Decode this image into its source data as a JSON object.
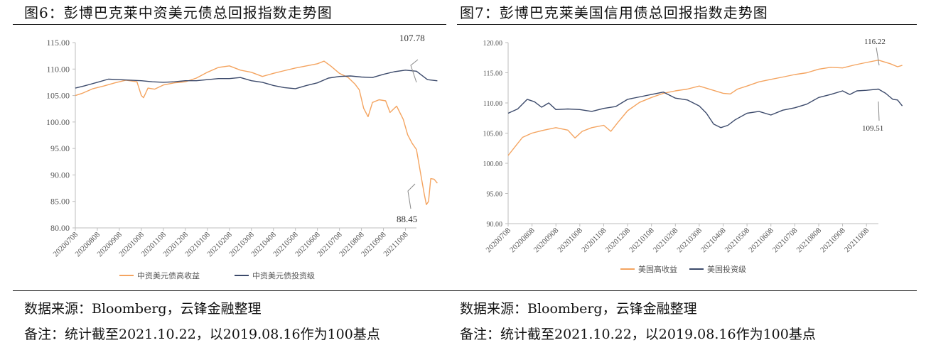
{
  "panels": [
    {
      "title": "图6：彭博巴克莱中资美元债总回报指数走势图",
      "source": "数据来源：Bloomberg，云锋金融整理",
      "note": "备注：统计截至2021.10.22，以2019.08.16作为100基点"
    },
    {
      "title": "图7：彭博巴克莱美国信用债总回报指数走势图",
      "source": "数据来源：Bloomberg，云锋金融整理",
      "note": "备注：统计截至2021.10.22，以2019.08.16作为100基点"
    }
  ],
  "colors": {
    "orange": "#F4A460",
    "navy": "#3C4A6B"
  },
  "chart_data": [
    {
      "type": "line",
      "ylim": [
        80,
        115
      ],
      "yticks": [
        "115.00",
        "110.00",
        "105.00",
        "100.00",
        "95.00",
        "90.00",
        "85.00",
        "80.00"
      ],
      "xticks": [
        "20200708",
        "20200808",
        "20200908",
        "20201008",
        "20201108",
        "20201208",
        "20210108",
        "20210208",
        "20210308",
        "20210408",
        "20210508",
        "20210608",
        "20210708",
        "20210808",
        "20210908",
        "20211008"
      ],
      "annotations": [
        {
          "text": "107.78"
        },
        {
          "text": "88.45"
        }
      ],
      "series": [
        {
          "name": "中资美元债高收益",
          "color": "#F4A460",
          "points": [
            [
              0,
              105.0
            ],
            [
              0.3,
              105.4
            ],
            [
              0.8,
              106.3
            ],
            [
              1.3,
              106.8
            ],
            [
              1.8,
              107.4
            ],
            [
              2.3,
              107.9
            ],
            [
              2.8,
              107.6
            ],
            [
              3.0,
              105.0
            ],
            [
              3.1,
              104.6
            ],
            [
              3.3,
              106.4
            ],
            [
              3.6,
              106.2
            ],
            [
              4.0,
              107.0
            ],
            [
              4.5,
              107.4
            ],
            [
              5.0,
              107.6
            ],
            [
              5.5,
              108.3
            ],
            [
              6.0,
              109.4
            ],
            [
              6.5,
              110.3
            ],
            [
              7.0,
              110.6
            ],
            [
              7.5,
              109.8
            ],
            [
              8.0,
              109.4
            ],
            [
              8.5,
              108.6
            ],
            [
              9.0,
              109.2
            ],
            [
              9.5,
              109.7
            ],
            [
              10.0,
              110.2
            ],
            [
              10.5,
              110.6
            ],
            [
              11.0,
              111.0
            ],
            [
              11.3,
              111.5
            ],
            [
              11.6,
              110.6
            ],
            [
              12.0,
              109.2
            ],
            [
              12.4,
              108.4
            ],
            [
              12.7,
              107.2
            ],
            [
              12.9,
              106.1
            ],
            [
              13.1,
              102.6
            ],
            [
              13.3,
              101.0
            ],
            [
              13.5,
              103.7
            ],
            [
              13.8,
              104.2
            ],
            [
              14.1,
              104.0
            ],
            [
              14.3,
              101.8
            ],
            [
              14.6,
              103.0
            ],
            [
              14.9,
              100.5
            ],
            [
              15.1,
              97.6
            ],
            [
              15.3,
              96.0
            ],
            [
              15.5,
              94.8
            ],
            [
              15.7,
              90.0
            ],
            [
              15.85,
              86.5
            ],
            [
              15.95,
              84.4
            ],
            [
              16.05,
              85.0
            ],
            [
              16.15,
              89.3
            ],
            [
              16.3,
              89.2
            ],
            [
              16.45,
              88.45
            ]
          ]
        },
        {
          "name": "中资美元债投资级",
          "color": "#3C4A6B",
          "points": [
            [
              0,
              106.4
            ],
            [
              0.4,
              106.8
            ],
            [
              1.0,
              107.5
            ],
            [
              1.5,
              108.1
            ],
            [
              2.0,
              108.0
            ],
            [
              2.5,
              107.9
            ],
            [
              3.0,
              107.8
            ],
            [
              3.5,
              107.6
            ],
            [
              4.0,
              107.5
            ],
            [
              4.5,
              107.6
            ],
            [
              5.0,
              107.8
            ],
            [
              5.5,
              107.8
            ],
            [
              6.0,
              108.0
            ],
            [
              6.5,
              108.2
            ],
            [
              7.0,
              108.2
            ],
            [
              7.5,
              108.4
            ],
            [
              8.0,
              107.8
            ],
            [
              8.5,
              107.5
            ],
            [
              9.0,
              106.9
            ],
            [
              9.5,
              106.5
            ],
            [
              10.0,
              106.3
            ],
            [
              10.5,
              106.9
            ],
            [
              11.0,
              107.4
            ],
            [
              11.5,
              108.3
            ],
            [
              12.0,
              108.6
            ],
            [
              12.5,
              108.7
            ],
            [
              13.0,
              108.5
            ],
            [
              13.5,
              108.4
            ],
            [
              14.0,
              109.0
            ],
            [
              14.5,
              109.5
            ],
            [
              15.0,
              109.8
            ],
            [
              15.5,
              109.6
            ],
            [
              16.0,
              108.0
            ],
            [
              16.45,
              107.78
            ]
          ]
        }
      ]
    },
    {
      "type": "line",
      "ylim": [
        90,
        120
      ],
      "yticks": [
        "120.00",
        "115.00",
        "110.00",
        "105.00",
        "100.00",
        "95.00",
        "90.00"
      ],
      "xticks": [
        "20200708",
        "20200808",
        "20200908",
        "20201008",
        "20201108",
        "20201208",
        "20210108",
        "20210208",
        "20210308",
        "20210408",
        "20210508",
        "20210608",
        "20210708",
        "20210808",
        "20210908",
        "20211008"
      ],
      "annotations": [
        {
          "text": "116.22"
        },
        {
          "text": "109.51"
        }
      ],
      "series": [
        {
          "name": "美国高收益",
          "color": "#F4A460",
          "points": [
            [
              0,
              101.3
            ],
            [
              0.3,
              102.8
            ],
            [
              0.6,
              104.3
            ],
            [
              1.0,
              105.0
            ],
            [
              1.5,
              105.5
            ],
            [
              2.0,
              105.9
            ],
            [
              2.5,
              105.5
            ],
            [
              2.8,
              104.2
            ],
            [
              3.1,
              105.3
            ],
            [
              3.5,
              105.9
            ],
            [
              4.0,
              106.3
            ],
            [
              4.3,
              105.3
            ],
            [
              4.6,
              106.8
            ],
            [
              5.0,
              108.7
            ],
            [
              5.5,
              110.1
            ],
            [
              6.0,
              110.9
            ],
            [
              6.5,
              111.6
            ],
            [
              7.0,
              112.0
            ],
            [
              7.5,
              112.3
            ],
            [
              8.0,
              112.8
            ],
            [
              8.5,
              112.2
            ],
            [
              9.0,
              111.6
            ],
            [
              9.3,
              111.5
            ],
            [
              9.6,
              112.3
            ],
            [
              10.0,
              112.8
            ],
            [
              10.5,
              113.5
            ],
            [
              11.0,
              113.9
            ],
            [
              11.5,
              114.3
            ],
            [
              12.0,
              114.7
            ],
            [
              12.5,
              115.0
            ],
            [
              13.0,
              115.6
            ],
            [
              13.5,
              115.9
            ],
            [
              14.0,
              115.8
            ],
            [
              14.5,
              116.3
            ],
            [
              15.0,
              116.7
            ],
            [
              15.5,
              117.1
            ],
            [
              16.0,
              116.5
            ],
            [
              16.3,
              116.0
            ],
            [
              16.5,
              116.22
            ]
          ]
        },
        {
          "name": "美国投资级",
          "color": "#3C4A6B",
          "points": [
            [
              0,
              108.3
            ],
            [
              0.4,
              109.0
            ],
            [
              0.8,
              110.6
            ],
            [
              1.1,
              110.2
            ],
            [
              1.4,
              109.3
            ],
            [
              1.7,
              110.0
            ],
            [
              2.0,
              108.9
            ],
            [
              2.5,
              109.0
            ],
            [
              3.0,
              108.9
            ],
            [
              3.5,
              108.6
            ],
            [
              4.0,
              109.1
            ],
            [
              4.5,
              109.4
            ],
            [
              5.0,
              110.6
            ],
            [
              5.5,
              111.0
            ],
            [
              6.0,
              111.4
            ],
            [
              6.5,
              111.8
            ],
            [
              7.0,
              110.8
            ],
            [
              7.5,
              110.5
            ],
            [
              8.0,
              109.5
            ],
            [
              8.3,
              108.3
            ],
            [
              8.6,
              106.5
            ],
            [
              8.9,
              105.9
            ],
            [
              9.2,
              106.3
            ],
            [
              9.5,
              107.2
            ],
            [
              10.0,
              108.3
            ],
            [
              10.5,
              108.6
            ],
            [
              11.0,
              108.0
            ],
            [
              11.5,
              108.8
            ],
            [
              12.0,
              109.2
            ],
            [
              12.5,
              109.8
            ],
            [
              13.0,
              110.9
            ],
            [
              13.5,
              111.4
            ],
            [
              14.0,
              112.0
            ],
            [
              14.3,
              111.4
            ],
            [
              14.6,
              112.0
            ],
            [
              15.0,
              112.1
            ],
            [
              15.5,
              112.3
            ],
            [
              15.8,
              111.6
            ],
            [
              16.1,
              110.6
            ],
            [
              16.3,
              110.5
            ],
            [
              16.5,
              109.51
            ]
          ]
        }
      ]
    }
  ]
}
